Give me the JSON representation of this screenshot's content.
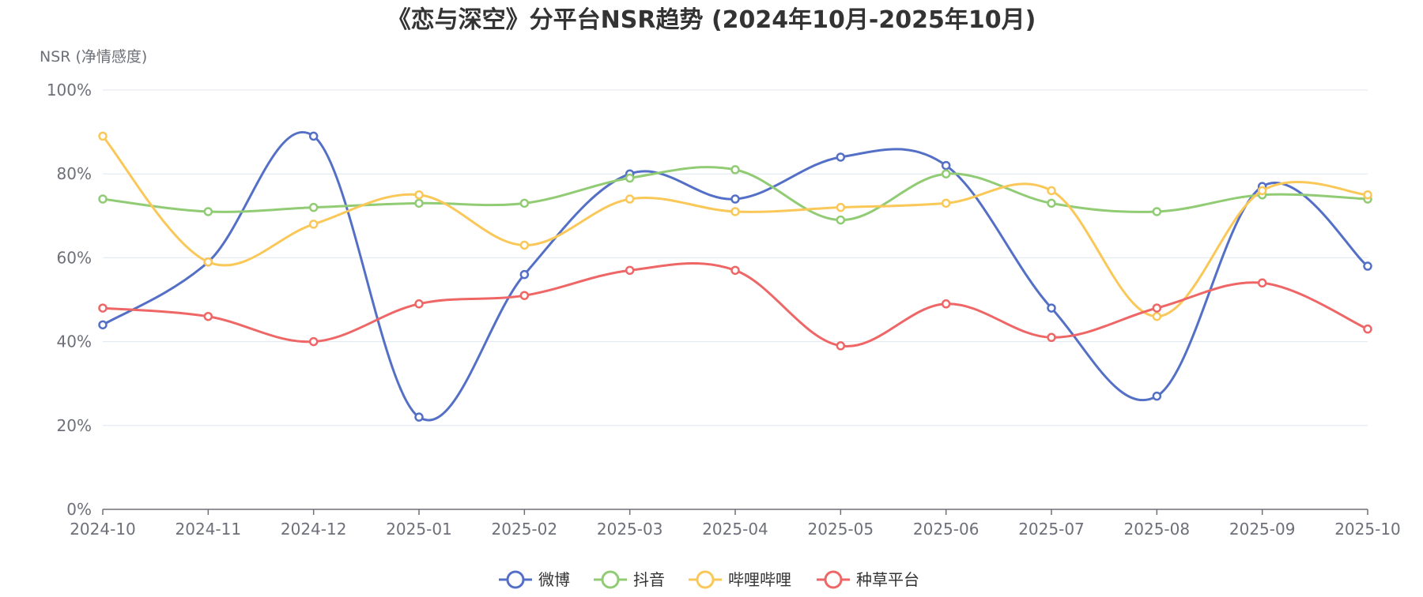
{
  "chart_data": {
    "type": "line",
    "title": "《恋与深空》分平台NSR趋势 (2024年10月-2025年10月)",
    "ylabel": "NSR (净情感度)",
    "xlabel": "",
    "categories": [
      "2024-10",
      "2024-11",
      "2024-12",
      "2025-01",
      "2025-02",
      "2025-03",
      "2025-04",
      "2025-05",
      "2025-06",
      "2025-07",
      "2025-08",
      "2025-09",
      "2025-10"
    ],
    "ylim": [
      0,
      100
    ],
    "yticks": [
      "0%",
      "20%",
      "40%",
      "60%",
      "80%",
      "100%"
    ],
    "y_unit": "%",
    "smooth": true,
    "grid": true,
    "legend_position": "bottom-center",
    "series": [
      {
        "name": "微博",
        "color": "#5470c6",
        "values": [
          44,
          59,
          89,
          22,
          56,
          80,
          74,
          84,
          82,
          48,
          27,
          77,
          58
        ]
      },
      {
        "name": "抖音",
        "color": "#91cc75",
        "values": [
          74,
          71,
          72,
          73,
          73,
          79,
          81,
          69,
          80,
          73,
          71,
          75,
          74
        ]
      },
      {
        "name": "哔哩哔哩",
        "color": "#fac858",
        "values": [
          89,
          59,
          68,
          75,
          63,
          74,
          71,
          72,
          73,
          76,
          46,
          76,
          75
        ]
      },
      {
        "name": "种草平台",
        "color": "#ee6666",
        "values": [
          48,
          46,
          40,
          49,
          51,
          57,
          57,
          39,
          49,
          41,
          48,
          54,
          43
        ]
      }
    ]
  }
}
